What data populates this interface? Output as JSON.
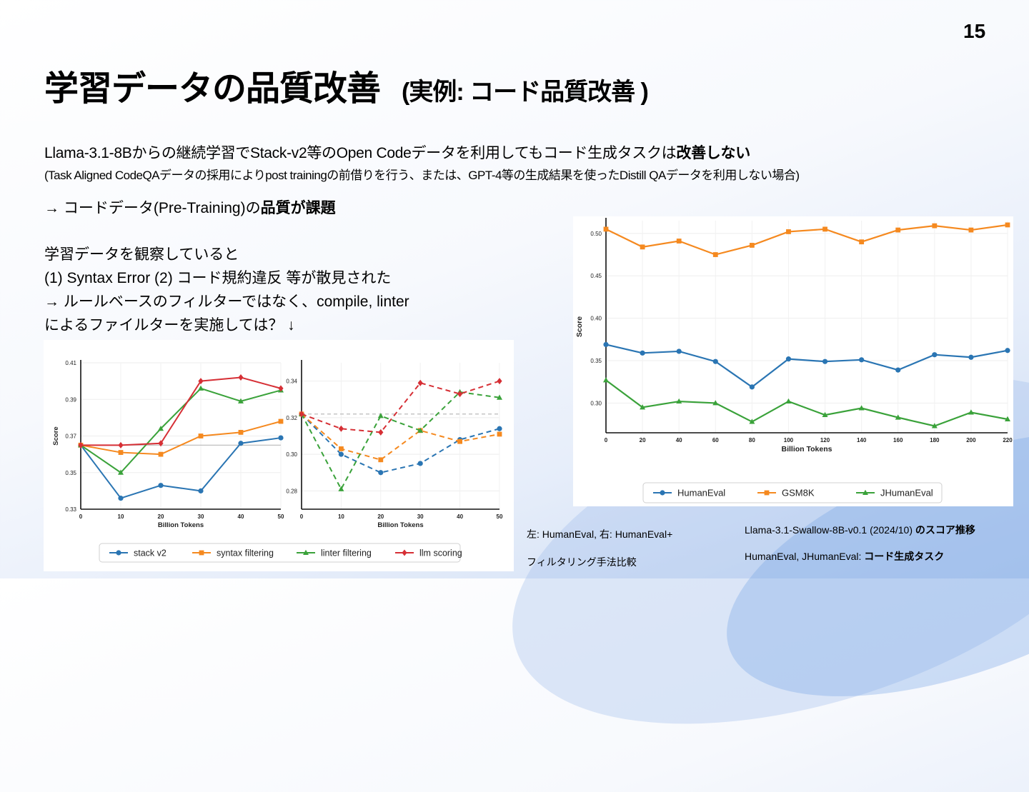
{
  "page_number": "15",
  "title": "学習データの品質改善",
  "title_example": "(実例: コード品質改善 )",
  "lines": {
    "l1_text": "Llama-3.1-8Bからの継続学習でStack-v2等のOpen Codeデータを利用してもコード生成タスクは",
    "l1_bold": "改善しない",
    "l2": "(Task Aligned CodeQAデータの採用によりpost trainingの前借りを行う、または、GPT-4等の生成結果を使ったDistill QAデータを利用しない場合)",
    "l3_text": "→ コードデータ(Pre-Training)の",
    "l3_bold": "品質が課題"
  },
  "observation": [
    "学習データを観察していると",
    "(1) Syntax Error (2) コード規約違反 等が散見された",
    "→ ルールベースのフィルターではなく、compile, linter",
    "によるファイルターを実施しては？ ↓"
  ],
  "captions": {
    "left_1": "左: HumanEval, 右: HumanEval+",
    "left_2": "フィルタリング手法比較",
    "right_1_text": "Llama-3.1-Swallow-8B-v0.1 (2024/10) ",
    "right_1_bold": "のスコア推移",
    "right_2_text": "HumanEval, JHumanEval: ",
    "right_2_bold": "コード生成タスク"
  },
  "colors": {
    "blue": "#2a75b3",
    "orange": "#f5891f",
    "green": "#3aa23a",
    "red": "#d62f35"
  },
  "chart_data": [
    {
      "type": "line",
      "title": "",
      "xlabel": "Billion Tokens",
      "ylabel": "Score",
      "x": [
        0,
        10,
        20,
        30,
        40,
        50
      ],
      "xlim": [
        0,
        50
      ],
      "ylim": [
        0.33,
        0.41
      ],
      "yticks": [
        "0.33",
        "0.35",
        "0.37",
        "0.39",
        "0.41"
      ],
      "baseline": 0.365,
      "series": [
        {
          "name": "stack v2",
          "values": [
            0.365,
            0.336,
            0.343,
            0.34,
            0.366,
            0.369
          ]
        },
        {
          "name": "syntax filtering",
          "values": [
            0.365,
            0.361,
            0.36,
            0.37,
            0.372,
            0.378
          ]
        },
        {
          "name": "linter filtering",
          "values": [
            0.365,
            0.35,
            0.374,
            0.396,
            0.389,
            0.395
          ]
        },
        {
          "name": "llm scoring",
          "values": [
            0.365,
            0.365,
            0.366,
            0.4,
            0.402,
            0.396
          ]
        }
      ]
    },
    {
      "type": "line",
      "title": "",
      "xlabel": "Billion Tokens",
      "ylabel": "",
      "x": [
        0,
        10,
        20,
        30,
        40,
        50
      ],
      "xlim": [
        0,
        50
      ],
      "ylim": [
        0.27,
        0.35
      ],
      "yticks": [
        "0.28",
        "0.30",
        "0.32",
        "0.34"
      ],
      "baseline": 0.322,
      "series": [
        {
          "name": "stack v2",
          "values": [
            0.322,
            0.3,
            0.29,
            0.295,
            0.308,
            0.314
          ]
        },
        {
          "name": "syntax filtering",
          "values": [
            0.322,
            0.303,
            0.297,
            0.313,
            0.307,
            0.311
          ]
        },
        {
          "name": "linter filtering",
          "values": [
            0.322,
            0.281,
            0.321,
            0.313,
            0.334,
            0.331
          ]
        },
        {
          "name": "llm scoring",
          "values": [
            0.322,
            0.314,
            0.312,
            0.339,
            0.333,
            0.34
          ]
        }
      ],
      "legend": [
        "stack v2",
        "syntax filtering",
        "linter filtering",
        "llm scoring"
      ]
    },
    {
      "type": "line",
      "title": "",
      "xlabel": "Billion Tokens",
      "ylabel": "Score",
      "x": [
        0,
        20,
        40,
        60,
        80,
        100,
        120,
        140,
        160,
        180,
        200,
        220
      ],
      "xlim": [
        0,
        220
      ],
      "ylim": [
        0.265,
        0.515
      ],
      "yticks": [
        "0.30",
        "0.35",
        "0.40",
        "0.45",
        "0.50"
      ],
      "series": [
        {
          "name": "HumanEval",
          "values": [
            0.369,
            0.359,
            0.361,
            0.349,
            0.319,
            0.352,
            0.349,
            0.351,
            0.339,
            0.357,
            0.354,
            0.362
          ]
        },
        {
          "name": "GSM8K",
          "values": [
            0.505,
            0.484,
            0.491,
            0.475,
            0.486,
            0.502,
            0.505,
            0.49,
            0.504,
            0.509,
            0.504,
            0.51
          ]
        },
        {
          "name": "JHumanEval",
          "values": [
            0.327,
            0.295,
            0.302,
            0.3,
            0.278,
            0.302,
            0.286,
            0.294,
            0.283,
            0.273,
            0.289,
            0.281
          ]
        }
      ]
    }
  ]
}
